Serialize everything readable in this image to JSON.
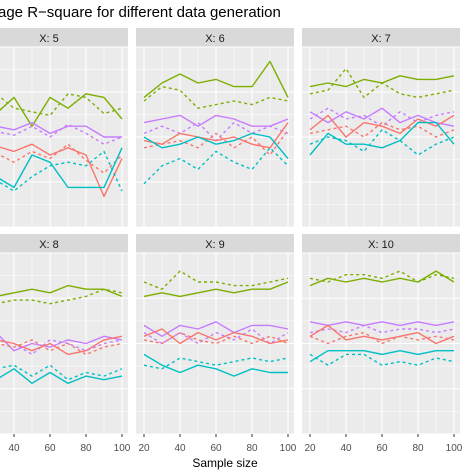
{
  "chart_data": {
    "type": "line",
    "title": "age R−square for different data generation",
    "xlabel": "Sample size",
    "ylabel": "",
    "x_ticks": [
      "20",
      "40",
      "60",
      "80",
      "100"
    ],
    "x_range": [
      20,
      100
    ],
    "y_range": [
      0,
      1
    ],
    "grid": true,
    "linetype_legend_visible": false,
    "colors": {
      "green": "#7CAE00",
      "red": "#F8766D",
      "purple": "#C77CFF",
      "teal": "#00BFC4",
      "strip_bg": "#d9d9d9",
      "panel_bg": "#ebebeb",
      "grid": "#ffffff"
    },
    "panels": [
      {
        "label": "X: 5",
        "x": [
          20,
          30,
          40,
          50,
          60,
          70,
          80,
          90,
          100
        ],
        "series": [
          {
            "color": "green",
            "dash": false,
            "y": [
              0.68,
              0.63,
              0.72,
              0.56,
              0.72,
              0.66,
              0.74,
              0.72,
              0.6
            ]
          },
          {
            "color": "green",
            "dash": true,
            "y": [
              0.66,
              0.74,
              0.66,
              0.64,
              0.62,
              0.74,
              0.72,
              0.63,
              0.66
            ]
          },
          {
            "color": "purple",
            "dash": false,
            "y": [
              0.52,
              0.56,
              0.54,
              0.58,
              0.52,
              0.56,
              0.56,
              0.5,
              0.5
            ]
          },
          {
            "color": "purple",
            "dash": true,
            "y": [
              0.5,
              0.53,
              0.51,
              0.56,
              0.5,
              0.57,
              0.52,
              0.46,
              0.5
            ]
          },
          {
            "color": "red",
            "dash": false,
            "y": [
              0.46,
              0.45,
              0.42,
              0.46,
              0.4,
              0.44,
              0.4,
              0.17,
              0.38
            ]
          },
          {
            "color": "red",
            "dash": true,
            "y": [
              0.42,
              0.41,
              0.36,
              0.42,
              0.38,
              0.46,
              0.37,
              0.3,
              0.4
            ]
          },
          {
            "color": "teal",
            "dash": false,
            "y": [
              0.32,
              0.28,
              0.22,
              0.4,
              0.36,
              0.22,
              0.22,
              0.22,
              0.44
            ]
          },
          {
            "color": "teal",
            "dash": true,
            "y": [
              0.3,
              0.26,
              0.2,
              0.28,
              0.34,
              0.36,
              0.34,
              0.42,
              0.2
            ]
          }
        ]
      },
      {
        "label": "X: 6",
        "x": [
          20,
          30,
          40,
          50,
          60,
          70,
          80,
          90,
          100
        ],
        "series": [
          {
            "color": "green",
            "dash": false,
            "y": [
              0.72,
              0.8,
              0.85,
              0.8,
              0.82,
              0.78,
              0.78,
              0.92,
              0.72
            ]
          },
          {
            "color": "green",
            "dash": true,
            "y": [
              0.7,
              0.78,
              0.76,
              0.66,
              0.68,
              0.7,
              0.68,
              0.72,
              0.7
            ]
          },
          {
            "color": "purple",
            "dash": false,
            "y": [
              0.58,
              0.6,
              0.62,
              0.56,
              0.62,
              0.6,
              0.56,
              0.56,
              0.6
            ]
          },
          {
            "color": "purple",
            "dash": true,
            "y": [
              0.52,
              0.56,
              0.52,
              0.58,
              0.48,
              0.58,
              0.52,
              0.56,
              0.52
            ]
          },
          {
            "color": "red",
            "dash": false,
            "y": [
              0.48,
              0.46,
              0.52,
              0.5,
              0.48,
              0.5,
              0.46,
              0.44,
              0.58
            ]
          },
          {
            "color": "red",
            "dash": true,
            "y": [
              0.44,
              0.46,
              0.48,
              0.44,
              0.52,
              0.44,
              0.5,
              0.4,
              0.54
            ]
          },
          {
            "color": "teal",
            "dash": false,
            "y": [
              0.5,
              0.44,
              0.46,
              0.5,
              0.46,
              0.48,
              0.52,
              0.5,
              0.38
            ]
          },
          {
            "color": "teal",
            "dash": true,
            "y": [
              0.24,
              0.34,
              0.38,
              0.32,
              0.42,
              0.36,
              0.32,
              0.44,
              0.34
            ]
          }
        ]
      },
      {
        "label": "X: 7",
        "x": [
          20,
          30,
          40,
          50,
          60,
          70,
          80,
          90,
          100
        ],
        "series": [
          {
            "color": "green",
            "dash": false,
            "y": [
              0.78,
              0.8,
              0.78,
              0.82,
              0.8,
              0.84,
              0.82,
              0.82,
              0.84
            ]
          },
          {
            "color": "green",
            "dash": true,
            "y": [
              0.74,
              0.76,
              0.88,
              0.72,
              0.8,
              0.74,
              0.72,
              0.74,
              0.76
            ]
          },
          {
            "color": "purple",
            "dash": false,
            "y": [
              0.64,
              0.58,
              0.64,
              0.6,
              0.66,
              0.58,
              0.62,
              0.58,
              0.56
            ]
          },
          {
            "color": "purple",
            "dash": true,
            "y": [
              0.6,
              0.66,
              0.6,
              0.62,
              0.56,
              0.64,
              0.58,
              0.62,
              0.64
            ]
          },
          {
            "color": "red",
            "dash": false,
            "y": [
              0.54,
              0.62,
              0.5,
              0.58,
              0.56,
              0.52,
              0.6,
              0.56,
              0.62
            ]
          },
          {
            "color": "red",
            "dash": true,
            "y": [
              0.52,
              0.54,
              0.56,
              0.5,
              0.58,
              0.54,
              0.56,
              0.5,
              0.54
            ]
          },
          {
            "color": "teal",
            "dash": false,
            "y": [
              0.4,
              0.52,
              0.46,
              0.46,
              0.44,
              0.48,
              0.58,
              0.58,
              0.46
            ]
          },
          {
            "color": "teal",
            "dash": true,
            "y": [
              0.46,
              0.5,
              0.48,
              0.42,
              0.54,
              0.48,
              0.4,
              0.46,
              0.5
            ]
          }
        ]
      },
      {
        "label": "X: 8",
        "x": [
          20,
          30,
          40,
          50,
          60,
          70,
          80,
          90,
          100
        ],
        "series": [
          {
            "color": "green",
            "dash": false,
            "y": [
              0.78,
              0.76,
              0.78,
              0.8,
              0.78,
              0.82,
              0.8,
              0.8,
              0.76
            ]
          },
          {
            "color": "green",
            "dash": true,
            "y": [
              0.72,
              0.72,
              0.74,
              0.74,
              0.72,
              0.74,
              0.76,
              0.8,
              0.78
            ]
          },
          {
            "color": "purple",
            "dash": false,
            "y": [
              0.52,
              0.56,
              0.46,
              0.5,
              0.48,
              0.52,
              0.5,
              0.54,
              0.52
            ]
          },
          {
            "color": "purple",
            "dash": true,
            "y": [
              0.5,
              0.52,
              0.5,
              0.44,
              0.52,
              0.5,
              0.46,
              0.5,
              0.52
            ]
          },
          {
            "color": "red",
            "dash": false,
            "y": [
              0.54,
              0.52,
              0.5,
              0.46,
              0.5,
              0.44,
              0.46,
              0.52,
              0.54
            ]
          },
          {
            "color": "red",
            "dash": true,
            "y": [
              0.48,
              0.5,
              0.48,
              0.52,
              0.46,
              0.5,
              0.44,
              0.48,
              0.5
            ]
          },
          {
            "color": "teal",
            "dash": false,
            "y": [
              0.32,
              0.3,
              0.36,
              0.28,
              0.34,
              0.28,
              0.32,
              0.3,
              0.32
            ]
          },
          {
            "color": "teal",
            "dash": true,
            "y": [
              0.28,
              0.36,
              0.38,
              0.32,
              0.38,
              0.3,
              0.34,
              0.32,
              0.36
            ]
          }
        ]
      },
      {
        "label": "X: 9",
        "x": [
          20,
          30,
          40,
          50,
          60,
          70,
          80,
          90,
          100
        ],
        "series": [
          {
            "color": "green",
            "dash": false,
            "y": [
              0.76,
              0.78,
              0.76,
              0.78,
              0.8,
              0.78,
              0.8,
              0.8,
              0.84
            ]
          },
          {
            "color": "green",
            "dash": true,
            "y": [
              0.84,
              0.8,
              0.9,
              0.84,
              0.84,
              0.82,
              0.82,
              0.84,
              0.86
            ]
          },
          {
            "color": "purple",
            "dash": false,
            "y": [
              0.6,
              0.54,
              0.6,
              0.58,
              0.62,
              0.56,
              0.6,
              0.6,
              0.58
            ]
          },
          {
            "color": "purple",
            "dash": true,
            "y": [
              0.56,
              0.5,
              0.56,
              0.5,
              0.56,
              0.52,
              0.58,
              0.5,
              0.56
            ]
          },
          {
            "color": "red",
            "dash": false,
            "y": [
              0.54,
              0.58,
              0.5,
              0.56,
              0.52,
              0.56,
              0.54,
              0.5,
              0.52
            ]
          },
          {
            "color": "red",
            "dash": true,
            "y": [
              0.52,
              0.5,
              0.56,
              0.52,
              0.5,
              0.54,
              0.5,
              0.54,
              0.5
            ]
          },
          {
            "color": "teal",
            "dash": false,
            "y": [
              0.44,
              0.38,
              0.34,
              0.38,
              0.36,
              0.32,
              0.36,
              0.34,
              0.34
            ]
          },
          {
            "color": "teal",
            "dash": true,
            "y": [
              0.38,
              0.36,
              0.42,
              0.4,
              0.38,
              0.4,
              0.42,
              0.4,
              0.42
            ]
          }
        ]
      },
      {
        "label": "X: 10",
        "x": [
          20,
          30,
          40,
          50,
          60,
          70,
          80,
          90,
          100
        ],
        "series": [
          {
            "color": "green",
            "dash": false,
            "y": [
              0.82,
              0.86,
              0.84,
              0.86,
              0.84,
              0.86,
              0.84,
              0.9,
              0.84
            ]
          },
          {
            "color": "green",
            "dash": true,
            "y": [
              0.86,
              0.84,
              0.88,
              0.88,
              0.86,
              0.9,
              0.84,
              0.88,
              0.86
            ]
          },
          {
            "color": "purple",
            "dash": false,
            "y": [
              0.62,
              0.6,
              0.62,
              0.6,
              0.62,
              0.6,
              0.62,
              0.6,
              0.62
            ]
          },
          {
            "color": "purple",
            "dash": true,
            "y": [
              0.56,
              0.58,
              0.56,
              0.6,
              0.56,
              0.58,
              0.58,
              0.56,
              0.58
            ]
          },
          {
            "color": "red",
            "dash": false,
            "y": [
              0.54,
              0.6,
              0.52,
              0.54,
              0.52,
              0.54,
              0.56,
              0.5,
              0.54
            ]
          },
          {
            "color": "red",
            "dash": true,
            "y": [
              0.54,
              0.5,
              0.54,
              0.56,
              0.5,
              0.54,
              0.52,
              0.54,
              0.52
            ]
          },
          {
            "color": "teal",
            "dash": false,
            "y": [
              0.4,
              0.46,
              0.46,
              0.46,
              0.44,
              0.46,
              0.44,
              0.46,
              0.46
            ]
          },
          {
            "color": "teal",
            "dash": true,
            "y": [
              0.44,
              0.38,
              0.44,
              0.44,
              0.38,
              0.4,
              0.38,
              0.42,
              0.4
            ]
          }
        ]
      }
    ]
  }
}
